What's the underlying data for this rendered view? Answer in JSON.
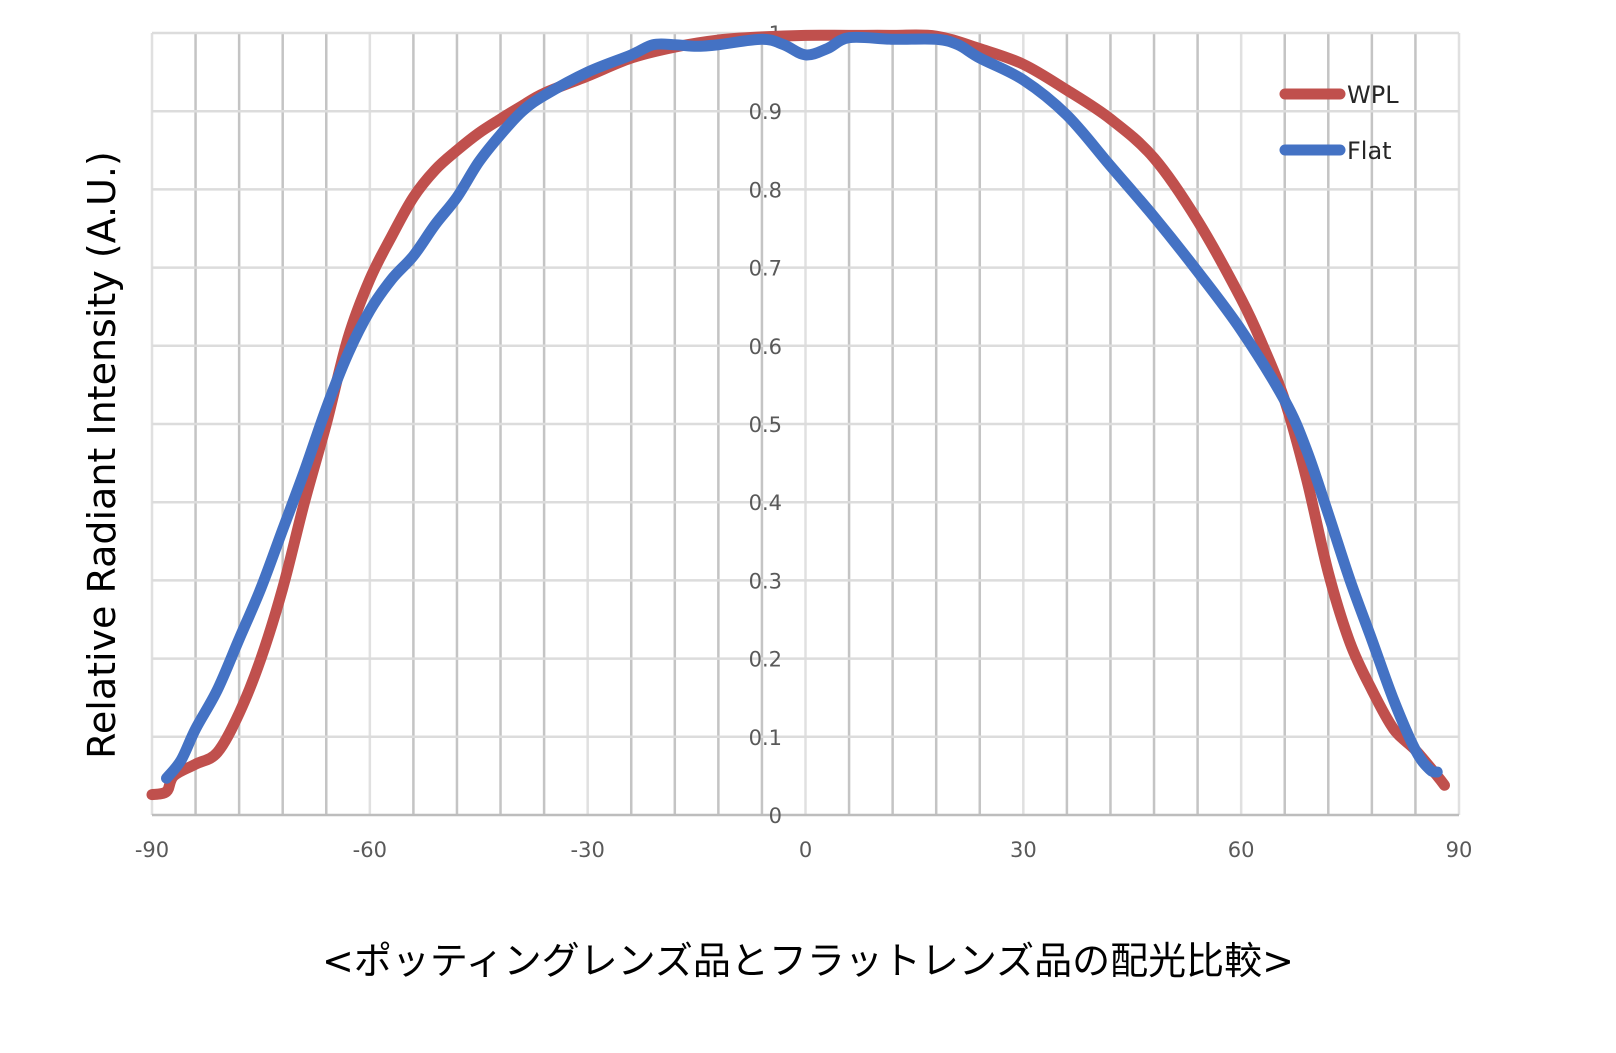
{
  "chart_data": {
    "type": "line",
    "title": "",
    "caption": "<ポッティングレンズ品とフラットレンズ品の配光比較>",
    "xlabel": "",
    "ylabel": "Relative Radiant Intensity (A.U.)",
    "xlim": [
      -90,
      90
    ],
    "ylim": [
      0,
      1
    ],
    "x_ticks": [
      -90,
      -60,
      -30,
      0,
      30,
      60,
      90
    ],
    "y_ticks": [
      0,
      0.1,
      0.2,
      0.3,
      0.4,
      0.5,
      0.6,
      0.7,
      0.8,
      0.9,
      1
    ],
    "y_tick_labels": [
      "0",
      "0.1",
      "0.2",
      "0.3",
      "0.4",
      "0.5",
      "0.6",
      "0.7",
      "0.8",
      "0.9",
      "1"
    ],
    "x_minor_grid_step": 6,
    "y_grid_step": 0.1,
    "grid": true,
    "legend_position": "top-right",
    "series": [
      {
        "name": "WPL",
        "color": "#C0504D",
        "x": [
          -90,
          -88,
          -87,
          -84,
          -81,
          -78,
          -75,
          -72,
          -69,
          -66,
          -63,
          -60,
          -57,
          -54,
          -51,
          -48,
          -45,
          -42,
          -39,
          -36,
          -30,
          -24,
          -18,
          -12,
          -6,
          0,
          6,
          12,
          18,
          24,
          30,
          36,
          42,
          48,
          54,
          60,
          63,
          66,
          69,
          72,
          75,
          78,
          81,
          84,
          87,
          88
        ],
        "y": [
          0.026,
          0.03,
          0.05,
          0.065,
          0.08,
          0.13,
          0.2,
          0.29,
          0.4,
          0.5,
          0.61,
          0.685,
          0.74,
          0.79,
          0.825,
          0.85,
          0.872,
          0.89,
          0.907,
          0.923,
          0.945,
          0.968,
          0.982,
          0.991,
          0.995,
          0.997,
          0.997,
          0.997,
          0.996,
          0.98,
          0.96,
          0.927,
          0.89,
          0.84,
          0.76,
          0.66,
          0.6,
          0.53,
          0.43,
          0.31,
          0.22,
          0.16,
          0.11,
          0.083,
          0.05,
          0.038
        ]
      },
      {
        "name": "Flat",
        "color": "#4472C4",
        "x": [
          -88,
          -86,
          -84,
          -81,
          -78,
          -75,
          -72,
          -69,
          -66,
          -63,
          -60,
          -57,
          -54,
          -51,
          -48,
          -45,
          -42,
          -39,
          -36,
          -30,
          -24,
          -21,
          -18,
          -15,
          -12,
          -6,
          -3,
          0,
          3,
          6,
          12,
          18,
          21,
          24,
          30,
          36,
          42,
          48,
          54,
          60,
          66,
          69,
          72,
          75,
          78,
          81,
          84,
          86,
          87
        ],
        "y": [
          0.047,
          0.07,
          0.11,
          0.16,
          0.225,
          0.29,
          0.365,
          0.44,
          0.52,
          0.59,
          0.645,
          0.685,
          0.715,
          0.755,
          0.79,
          0.835,
          0.87,
          0.9,
          0.92,
          0.95,
          0.972,
          0.985,
          0.985,
          0.983,
          0.985,
          0.992,
          0.985,
          0.972,
          0.98,
          0.994,
          0.992,
          0.992,
          0.985,
          0.968,
          0.94,
          0.895,
          0.83,
          0.765,
          0.695,
          0.62,
          0.53,
          0.467,
          0.385,
          0.3,
          0.224,
          0.147,
          0.083,
          0.058,
          0.055
        ]
      }
    ]
  }
}
